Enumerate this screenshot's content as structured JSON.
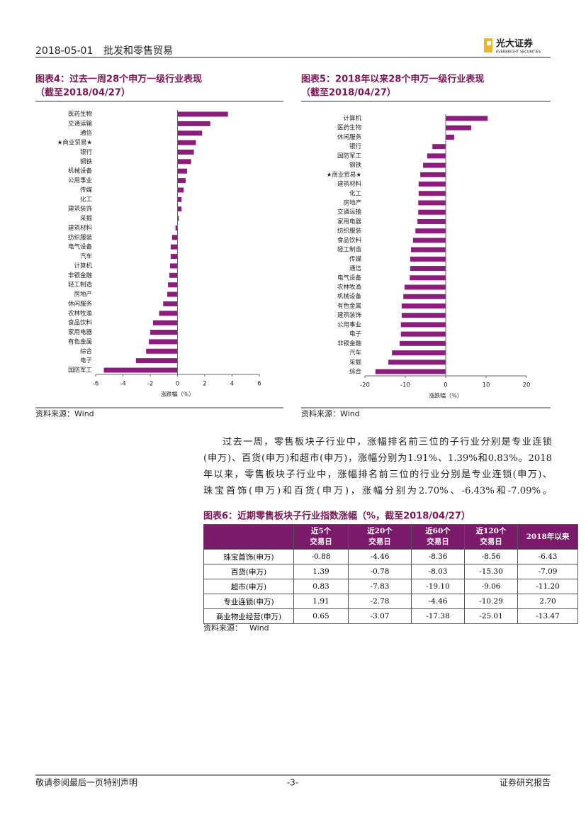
{
  "header": {
    "date": "2018-05-01",
    "sector": "批发和零售贸易",
    "logo": "光大证券",
    "logo_en": "EVERBRIGHT SECURITIES"
  },
  "chart_data": [
    {
      "type": "bar",
      "orientation": "horizontal",
      "title": "图表4：过去一周28个申万一级行业表现",
      "subtitle": "（截至2018/04/27）",
      "categories": [
        "医药生物",
        "交通运输",
        "通信",
        "★商业贸易★",
        "银行",
        "钢铁",
        "机械设备",
        "公用事业",
        "传媒",
        "化工",
        "建筑装饰",
        "采掘",
        "建筑材料",
        "纺织服装",
        "电气设备",
        "汽车",
        "计算机",
        "非银金融",
        "轻工制造",
        "房地产",
        "休闲服务",
        "农林牧渔",
        "食品饮料",
        "家用电器",
        "有色金属",
        "综合",
        "电子",
        "国防军工"
      ],
      "values": [
        3.7,
        2.4,
        1.8,
        1.35,
        1.2,
        1.0,
        0.7,
        0.6,
        0.45,
        0.3,
        0.3,
        0.1,
        -0.15,
        -0.4,
        -0.5,
        -0.5,
        -0.55,
        -0.6,
        -0.7,
        -0.75,
        -1.05,
        -1.35,
        -1.8,
        -2.0,
        -2.1,
        -2.3,
        -3.05,
        -5.4
      ],
      "color": "#8c1d7d",
      "xlim": [
        -6,
        6
      ],
      "xticks": [
        -6,
        -4,
        -2,
        0,
        2,
        4,
        6
      ],
      "xlabel": "涨跌幅（%）",
      "source": "资料来源：Wind"
    },
    {
      "type": "bar",
      "orientation": "horizontal",
      "title": "图表5：2018年以来28个申万一级行业表现",
      "subtitle": "（截至2018/04/27）",
      "categories": [
        "计算机",
        "医药生物",
        "休闲服务",
        "银行",
        "国防军工",
        "钢铁",
        "★商业贸易★",
        "建筑材料",
        "化工",
        "房地产",
        "交通运输",
        "家用电器",
        "纺织服装",
        "食品饮料",
        "轻工制造",
        "传媒",
        "通信",
        "电气设备",
        "农林牧渔",
        "机械设备",
        "有色金属",
        "建筑装饰",
        "公用事业",
        "电子",
        "非银金融",
        "汽车",
        "采掘",
        "综合"
      ],
      "values": [
        10.4,
        6.3,
        2.1,
        -3.3,
        -4.6,
        -5.6,
        -6.3,
        -6.7,
        -6.7,
        -6.8,
        -6.8,
        -7.0,
        -7.5,
        -8.1,
        -8.6,
        -8.8,
        -8.8,
        -8.9,
        -10.2,
        -10.5,
        -10.9,
        -10.9,
        -11.1,
        -11.1,
        -11.4,
        -13.3,
        -14.2,
        -17.4
      ],
      "color": "#8c1d7d",
      "xlim": [
        -20,
        20
      ],
      "xticks": [
        -20,
        -10,
        0,
        10,
        20
      ],
      "xlabel": "涨跌幅（%）",
      "source": "资料来源：Wind"
    }
  ],
  "paragraph": [
    "过去一周，零售板块子行业中，涨幅排名前三位的子行业分别是专业连锁",
    "(申万)、百货(申万)和超市(申万)，涨幅分别为1.91%、1.39%和0.83%。2018",
    "年以来，零售板块子行业中，涨幅排名前三位的行业分别是专业连锁(申万)、",
    "珠宝首饰(申万)和百货(申万)，涨幅分别为2.70%、-6.43%和-7.09%。"
  ],
  "table": {
    "title": "图表6：近期零售板块子行业指数涨幅（%，截至2018/04/27）",
    "columns": [
      [
        "近5个",
        "交易日"
      ],
      [
        "近20个",
        "交易日"
      ],
      [
        "近60个",
        "交易日"
      ],
      [
        "近120个",
        "交易日"
      ],
      [
        "2018年以来"
      ]
    ],
    "rows": [
      [
        "珠宝首饰(申万)",
        "-0.88",
        "-4.46",
        "-8.36",
        "-8.56",
        "-6.43"
      ],
      [
        "百货(申万)",
        "1.39",
        "-0.78",
        "-8.03",
        "-15.30",
        "-7.09"
      ],
      [
        "超市(申万)",
        "0.83",
        "-7.83",
        "-19.10",
        "-9.06",
        "-11.20"
      ],
      [
        "专业连锁(申万)",
        "1.91",
        "-2.78",
        "-4.46",
        "-10.29",
        "2.70"
      ],
      [
        "商业物业经营(申万)",
        "0.65",
        "-3.07",
        "-17.38",
        "-25.01",
        "-13.47"
      ]
    ],
    "source": "资料来源：",
    "source_name": "Wind"
  },
  "footer": {
    "left": "敬请参阅最后一页特别声明",
    "center": "-3-",
    "right": "证券研究报告"
  }
}
